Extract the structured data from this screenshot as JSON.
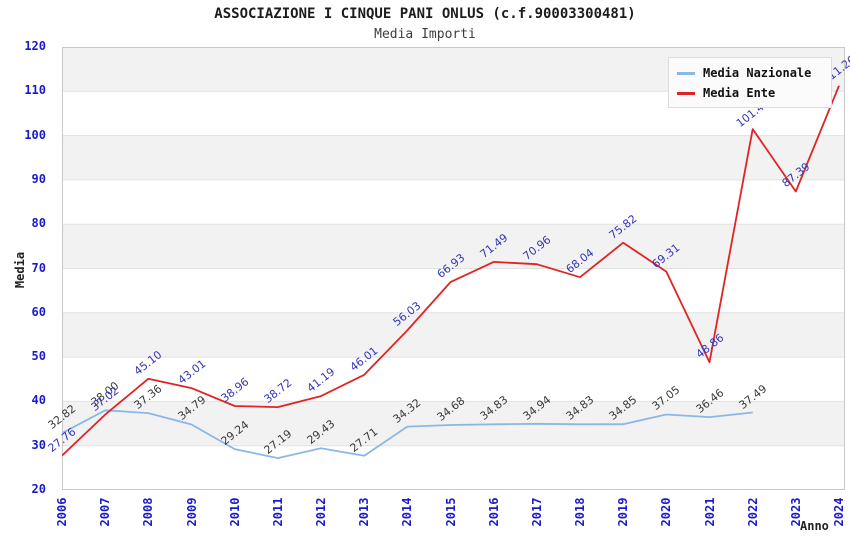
{
  "chart_data": {
    "type": "line",
    "title": "ASSOCIAZIONE I CINQUE PANI ONLUS (c.f.90003300481)",
    "subtitle": "Media Importi",
    "xlabel": "Anno",
    "ylabel": "Media",
    "ylim": [
      20,
      120
    ],
    "yticks": [
      20,
      30,
      40,
      50,
      60,
      70,
      80,
      90,
      100,
      110,
      120
    ],
    "categories": [
      "2006",
      "2007",
      "2008",
      "2009",
      "2010",
      "2011",
      "2012",
      "2013",
      "2014",
      "2015",
      "2016",
      "2017",
      "2018",
      "2019",
      "2020",
      "2021",
      "2022",
      "2023",
      "2024"
    ],
    "series": [
      {
        "name": "Media Nazionale",
        "color": "#8ab8e6",
        "label_color": "#3a3a3a",
        "values": [
          32.82,
          38.0,
          37.36,
          34.79,
          29.24,
          27.19,
          29.43,
          27.71,
          34.32,
          34.68,
          34.83,
          34.94,
          34.83,
          34.85,
          37.05,
          36.46,
          37.49
        ]
      },
      {
        "name": "Media Ente",
        "color": "#e02424",
        "label_color": "#3434b8",
        "values": [
          27.76,
          37.02,
          45.1,
          43.01,
          38.96,
          38.72,
          41.19,
          46.01,
          56.03,
          66.93,
          71.49,
          70.96,
          68.04,
          75.82,
          69.31,
          48.86,
          101.46,
          87.39,
          111.26
        ]
      }
    ],
    "legend_position": "top-right",
    "grid": "horizontal-bands",
    "colors": {
      "band_gray": "#f2f2f2",
      "gridline": "#e2e2e2",
      "plot_border": "#c8c8c8",
      "axis_tick_text": "#1a1acd",
      "background": "#ffffff"
    }
  }
}
